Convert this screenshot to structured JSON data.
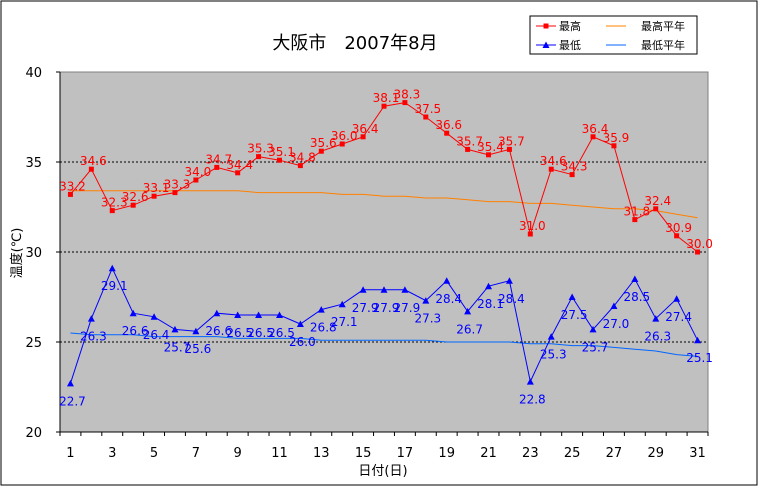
{
  "chart_data": {
    "type": "line",
    "title": "大阪市　2007年8月",
    "xlabel": "日付(日)",
    "ylabel": "温度(℃)",
    "ylim": [
      20,
      40
    ],
    "yticks": [
      "20",
      "25",
      "30",
      "35",
      "40"
    ],
    "x": [
      1,
      2,
      3,
      4,
      5,
      6,
      7,
      8,
      9,
      10,
      11,
      12,
      13,
      14,
      15,
      16,
      17,
      18,
      19,
      20,
      21,
      22,
      23,
      24,
      25,
      26,
      27,
      28,
      29,
      30,
      31
    ],
    "xtick_labels": [
      "1",
      "3",
      "5",
      "7",
      "9",
      "11",
      "13",
      "15",
      "17",
      "19",
      "21",
      "23",
      "25",
      "27",
      "29",
      "31"
    ],
    "grid": "dotted horizontal lines at 25, 30, 35",
    "legend_position": "top-right",
    "colors": {
      "max": "#ff0000",
      "min": "#0000ff",
      "max_avg": "#ff8000",
      "min_avg": "#0066ff",
      "plot_bg": "#c0c0c0"
    },
    "series": [
      {
        "name": "最高",
        "values": [
          33.2,
          34.6,
          32.3,
          32.6,
          33.1,
          33.3,
          34.0,
          34.7,
          34.4,
          35.3,
          35.1,
          34.8,
          35.6,
          36.0,
          36.4,
          38.1,
          38.3,
          37.5,
          36.6,
          35.7,
          35.4,
          35.7,
          31.0,
          34.6,
          34.3,
          36.4,
          35.9,
          31.8,
          32.4,
          30.9,
          30.0
        ],
        "labels": [
          "33.2",
          "34.6",
          "32.3",
          "32.6",
          "33.1",
          "33.3",
          "34.0",
          "34.7",
          "34.4",
          "35.3",
          "35.1",
          "34.8",
          "35.6",
          "36.0",
          "36.4",
          "38.1",
          "38.3",
          "37.5",
          "36.6",
          "35.7",
          "35.4",
          "35.7",
          "31.0",
          "34.6",
          "34.3",
          "36.4",
          "35.9",
          "31.8",
          "32.4",
          "30.9",
          "30.0"
        ]
      },
      {
        "name": "最低",
        "values": [
          22.7,
          26.3,
          29.1,
          26.6,
          26.4,
          25.7,
          25.6,
          26.6,
          26.5,
          26.5,
          26.5,
          26.0,
          26.8,
          27.1,
          27.9,
          27.9,
          27.9,
          27.3,
          28.4,
          26.7,
          28.1,
          28.4,
          22.8,
          25.3,
          27.5,
          25.7,
          27.0,
          28.5,
          26.3,
          27.4,
          25.1
        ],
        "labels": [
          "22.7",
          "26.3",
          "29.1",
          "26.6",
          "26.4",
          "25.7",
          "25.6",
          "26.6",
          "26.5",
          "26.5",
          "26.5",
          "26.0",
          "26.8",
          "27.1",
          "27.9",
          "27.9",
          "27.9",
          "27.3",
          "28.4",
          "26.7",
          "28.1",
          "28.4",
          "22.8",
          "25.3",
          "27.5",
          "25.7",
          "27.0",
          "28.5",
          "26.3",
          "27.4",
          "25.1"
        ]
      },
      {
        "name": "最高平年",
        "values": [
          33.4,
          33.4,
          33.4,
          33.4,
          33.4,
          33.4,
          33.4,
          33.4,
          33.4,
          33.3,
          33.3,
          33.3,
          33.3,
          33.2,
          33.2,
          33.1,
          33.1,
          33.0,
          33.0,
          32.9,
          32.8,
          32.8,
          32.7,
          32.7,
          32.6,
          32.5,
          32.4,
          32.4,
          32.3,
          32.1,
          31.9
        ]
      },
      {
        "name": "最低平年",
        "values": [
          25.5,
          25.4,
          25.4,
          25.4,
          25.3,
          25.3,
          25.3,
          25.3,
          25.2,
          25.2,
          25.2,
          25.2,
          25.1,
          25.1,
          25.1,
          25.1,
          25.1,
          25.1,
          25.0,
          25.0,
          25.0,
          25.0,
          24.9,
          24.9,
          24.8,
          24.8,
          24.7,
          24.6,
          24.5,
          24.3,
          24.2
        ]
      }
    ]
  }
}
